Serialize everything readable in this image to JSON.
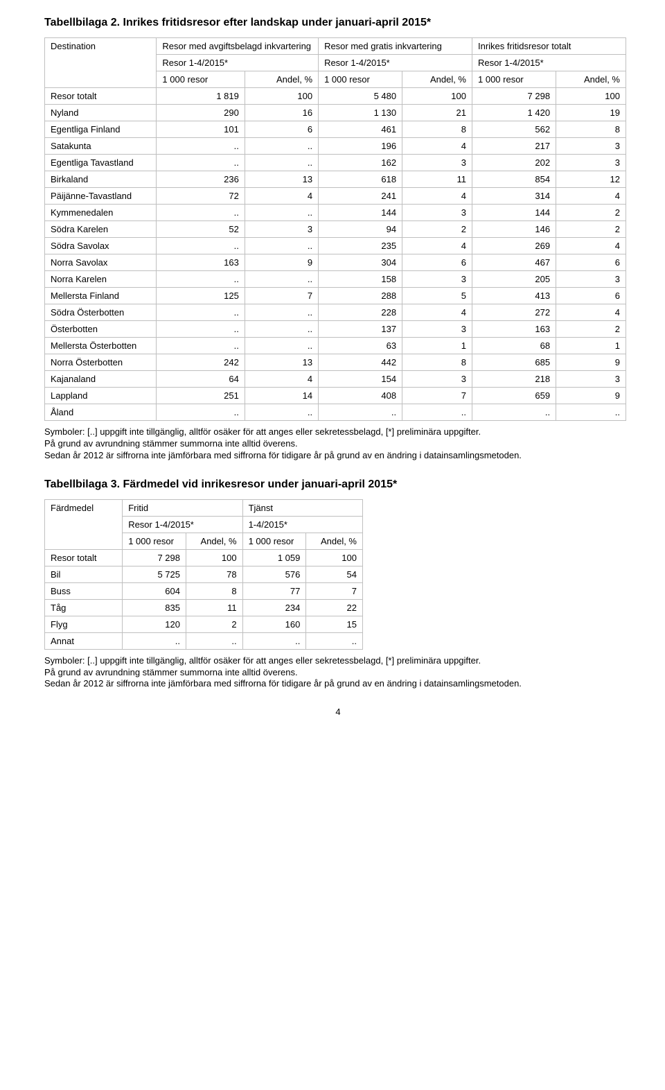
{
  "table1": {
    "title": "Tabellbilaga 2. Inrikes fritidsresor efter landskap under januari-april 2015*",
    "top_left": "Destination",
    "group_headers": [
      "Resor med avgiftsbelagd inkvartering",
      "Resor med gratis inkvartering",
      "Inrikes fritidsresor totalt"
    ],
    "period_label": "Resor 1-4/2015*",
    "col_a": "1 000 resor",
    "col_b": "Andel, %",
    "rows": [
      {
        "label": "Resor totalt",
        "v": [
          "1 819",
          "100",
          "5 480",
          "100",
          "7 298",
          "100"
        ]
      },
      {
        "label": "Nyland",
        "v": [
          "290",
          "16",
          "1 130",
          "21",
          "1 420",
          "19"
        ]
      },
      {
        "label": "Egentliga Finland",
        "v": [
          "101",
          "6",
          "461",
          "8",
          "562",
          "8"
        ]
      },
      {
        "label": "Satakunta",
        "v": [
          "..",
          "..",
          "196",
          "4",
          "217",
          "3"
        ]
      },
      {
        "label": "Egentliga Tavastland",
        "v": [
          "..",
          "..",
          "162",
          "3",
          "202",
          "3"
        ]
      },
      {
        "label": "Birkaland",
        "v": [
          "236",
          "13",
          "618",
          "11",
          "854",
          "12"
        ]
      },
      {
        "label": "Päijänne-Tavastland",
        "v": [
          "72",
          "4",
          "241",
          "4",
          "314",
          "4"
        ]
      },
      {
        "label": "Kymmenedalen",
        "v": [
          "..",
          "..",
          "144",
          "3",
          "144",
          "2"
        ]
      },
      {
        "label": "Södra Karelen",
        "v": [
          "52",
          "3",
          "94",
          "2",
          "146",
          "2"
        ]
      },
      {
        "label": "Södra Savolax",
        "v": [
          "..",
          "..",
          "235",
          "4",
          "269",
          "4"
        ]
      },
      {
        "label": "Norra Savolax",
        "v": [
          "163",
          "9",
          "304",
          "6",
          "467",
          "6"
        ]
      },
      {
        "label": "Norra Karelen",
        "v": [
          "..",
          "..",
          "158",
          "3",
          "205",
          "3"
        ]
      },
      {
        "label": "Mellersta Finland",
        "v": [
          "125",
          "7",
          "288",
          "5",
          "413",
          "6"
        ]
      },
      {
        "label": "Södra Österbotten",
        "v": [
          "..",
          "..",
          "228",
          "4",
          "272",
          "4"
        ]
      },
      {
        "label": "Österbotten",
        "v": [
          "..",
          "..",
          "137",
          "3",
          "163",
          "2"
        ]
      },
      {
        "label": "Mellersta Österbotten",
        "v": [
          "..",
          "..",
          "63",
          "1",
          "68",
          "1"
        ]
      },
      {
        "label": "Norra Österbotten",
        "v": [
          "242",
          "13",
          "442",
          "8",
          "685",
          "9"
        ]
      },
      {
        "label": "Kajanaland",
        "v": [
          "64",
          "4",
          "154",
          "3",
          "218",
          "3"
        ]
      },
      {
        "label": "Lappland",
        "v": [
          "251",
          "14",
          "408",
          "7",
          "659",
          "9"
        ]
      },
      {
        "label": "Åland",
        "v": [
          "..",
          "..",
          "..",
          "..",
          "..",
          ".."
        ]
      }
    ]
  },
  "table2": {
    "title": "Tabellbilaga 3. Färdmedel vid inrikesresor under januari-april 2015*",
    "top_left": "Färdmedel",
    "group_headers": [
      "Fritid",
      "Tjänst"
    ],
    "period_labels": [
      "Resor 1-4/2015*",
      "1-4/2015*"
    ],
    "col_a": "1 000 resor",
    "col_b": "Andel, %",
    "rows": [
      {
        "label": "Resor totalt",
        "v": [
          "7 298",
          "100",
          "1 059",
          "100"
        ]
      },
      {
        "label": "Bil",
        "v": [
          "5 725",
          "78",
          "576",
          "54"
        ]
      },
      {
        "label": "Buss",
        "v": [
          "604",
          "8",
          "77",
          "7"
        ]
      },
      {
        "label": "Tåg",
        "v": [
          "835",
          "11",
          "234",
          "22"
        ]
      },
      {
        "label": "Flyg",
        "v": [
          "120",
          "2",
          "160",
          "15"
        ]
      },
      {
        "label": "Annat",
        "v": [
          "..",
          "..",
          "..",
          ".."
        ]
      }
    ]
  },
  "footnote": {
    "l1": "Symboler: [..] uppgift inte tillgänglig, alltför osäker för att anges eller sekretessbelagd, [*] preliminära uppgifter.",
    "l2": "På grund av avrundning stämmer summorna inte alltid överens.",
    "l3": "Sedan år 2012 är siffrorna inte jämförbara med siffrorna för tidigare år på grund av en ändring i datainsamlingsmetoden."
  },
  "page_number": "4"
}
